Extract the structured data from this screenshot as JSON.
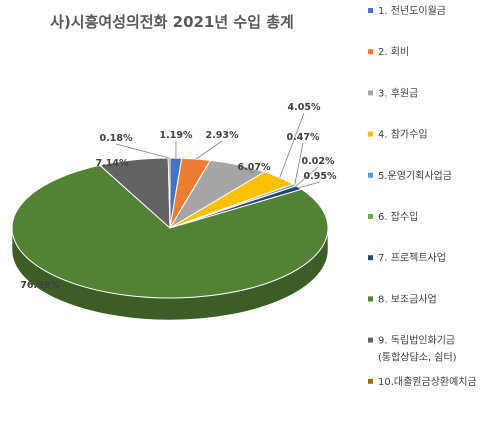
{
  "chart_data": {
    "type": "pie",
    "title": "사)시흥여성의전화 2021년 수입 총계",
    "categories": [
      "1. 전년도이월금",
      "2. 회비",
      "3. 후원금",
      "4. 참가수입",
      "5.운영기획사업금",
      "6. 잡수입",
      "7. 프로젝트사업",
      "8. 보조금사업",
      "9. 독립법인화기금",
      "10.대출원금상환예치금"
    ],
    "legend_extra": {
      "8": "(통합상담소, 쉼터)"
    },
    "values": [
      1.19,
      2.93,
      6.07,
      4.05,
      0.47,
      0.02,
      0.95,
      76.99,
      7.14,
      0.18
    ],
    "value_labels": [
      "1.19%",
      "2.93%",
      "6.07%",
      "4.05%",
      "0.47%",
      "0.02%",
      "0.95%",
      "76.99%",
      "7.14%",
      "0.18%"
    ],
    "colors": [
      "#4472c4",
      "#ed7d31",
      "#a5a5a5",
      "#ffc000",
      "#5b9bd5",
      "#70ad47",
      "#264478",
      "#548235",
      "#636363",
      "#997300"
    ],
    "legend_position": "right",
    "style": "3d-pie"
  }
}
